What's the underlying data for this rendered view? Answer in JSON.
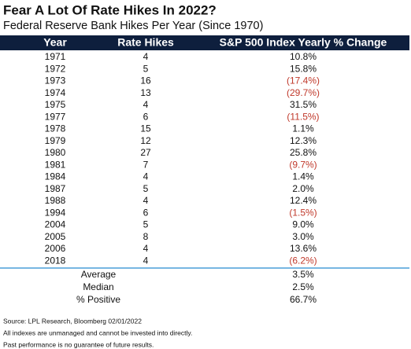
{
  "header": {
    "title": "Fear A Lot Of Rate Hikes In 2022?",
    "subtitle": "Federal Reserve Bank Hikes Per Year (Since 1970)"
  },
  "table": {
    "columns": [
      "Year",
      "Rate Hikes",
      "S&P 500 Index Yearly % Change"
    ],
    "header_color": "#0e1f3d",
    "negative_color": "#c0392b",
    "divider_color": "#4a9fd8",
    "rows": [
      [
        "1971",
        4,
        "10.8%"
      ],
      [
        "1972",
        5,
        "15.8%"
      ],
      [
        "1973",
        16,
        "(17.4%)"
      ],
      [
        "1974",
        13,
        "(29.7%)"
      ],
      [
        "1975",
        4,
        "31.5%"
      ],
      [
        "1977",
        6,
        "(11.5%)"
      ],
      [
        "1978",
        15,
        "1.1%"
      ],
      [
        "1979",
        12,
        "12.3%"
      ],
      [
        "1980",
        27,
        "25.8%"
      ],
      [
        "1981",
        7,
        "(9.7%)"
      ],
      [
        "1984",
        4,
        "1.4%"
      ],
      [
        "1987",
        5,
        "2.0%"
      ],
      [
        "1988",
        4,
        "12.4%"
      ],
      [
        "1994",
        6,
        "(1.5%)"
      ],
      [
        "2004",
        5,
        "9.0%"
      ],
      [
        "2005",
        8,
        "3.0%"
      ],
      [
        "2006",
        4,
        "13.6%"
      ],
      [
        "2018",
        4,
        "(6.2%)"
      ]
    ],
    "summary": [
      [
        "Average",
        "3.5%"
      ],
      [
        "Median",
        "2.5%"
      ],
      [
        "% Positive",
        "66.7%"
      ]
    ]
  },
  "footnotes": [
    "Source: LPL Research, Bloomberg 02/01/2022",
    "All indexes are unmanaged and cannot be invested into directly.",
    "Past performance is no guarantee of future results."
  ]
}
